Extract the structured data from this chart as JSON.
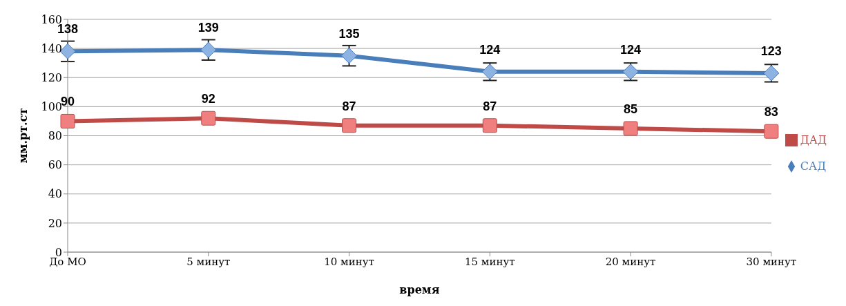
{
  "chart_data": {
    "type": "line",
    "xlabel": "время",
    "ylabel": "мм.рт.ст",
    "categories": [
      "До МО",
      "5 минут",
      "10 минут",
      "15 минут",
      "20 минут",
      "30 минут"
    ],
    "series": [
      {
        "name": "САД",
        "color": "#4a7ebb",
        "values": [
          138,
          139,
          135,
          124,
          124,
          123
        ],
        "errors": [
          7,
          7,
          7,
          6,
          6,
          6
        ],
        "marker": "diamond"
      },
      {
        "name": "ДАД",
        "color": "#be4b48",
        "values": [
          90,
          92,
          87,
          87,
          85,
          83
        ],
        "marker": "square"
      }
    ],
    "ylim": [
      0,
      160
    ],
    "yticks": [
      0,
      20,
      40,
      60,
      80,
      100,
      120,
      140,
      160
    ],
    "grid": "y",
    "legend": "right",
    "data_labels": true
  }
}
